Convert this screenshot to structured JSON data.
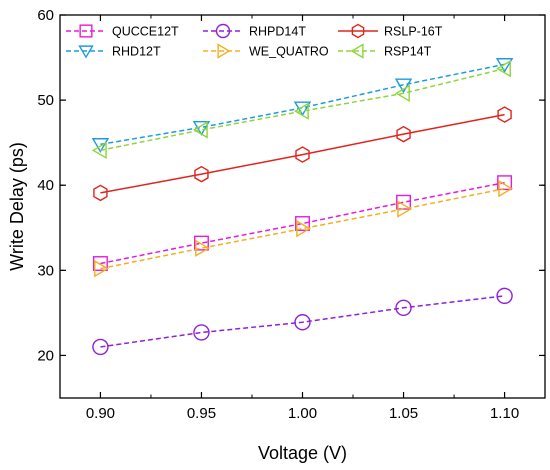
{
  "chart_data": {
    "type": "line",
    "title": "",
    "xlabel": "Voltage (V)",
    "ylabel": "Write Delay (ps)",
    "xlim": [
      0.88,
      1.12
    ],
    "ylim": [
      15,
      60
    ],
    "x": [
      0.9,
      0.95,
      1.0,
      1.05,
      1.1
    ],
    "x_tick_labels": [
      "0.90",
      "0.95",
      "1.00",
      "1.05",
      "1.10"
    ],
    "y_ticks": [
      20,
      30,
      40,
      50,
      60
    ],
    "y_tick_labels": [
      "20",
      "30",
      "40",
      "50",
      "60"
    ],
    "grid": false,
    "legend_position": "top-left",
    "series": [
      {
        "name": "QUCCE12T",
        "values": [
          30.8,
          33.2,
          35.5,
          38.0,
          40.3
        ],
        "color": "#e81ad9",
        "marker": "square",
        "dash": true
      },
      {
        "name": "RHPD14T",
        "values": [
          21.0,
          22.7,
          23.9,
          25.6,
          27.0
        ],
        "color": "#8e22d9",
        "marker": "circle",
        "dash": true
      },
      {
        "name": "RSLP-16T",
        "values": [
          39.1,
          41.3,
          43.6,
          46.0,
          48.3
        ],
        "color": "#e0241c",
        "marker": "hexagon",
        "dash": false
      },
      {
        "name": "RHD12T",
        "values": [
          44.8,
          46.8,
          49.1,
          51.8,
          54.2
        ],
        "color": "#1e9be0",
        "marker": "triangle-down",
        "dash": true
      },
      {
        "name": "WE_QUATRO",
        "values": [
          30.2,
          32.6,
          34.9,
          37.2,
          39.6
        ],
        "color": "#f2b01e",
        "marker": "triangle-right",
        "dash": true
      },
      {
        "name": "RSP14T",
        "values": [
          44.1,
          46.5,
          48.7,
          50.8,
          53.7
        ],
        "color": "#8ed63a",
        "marker": "triangle-left",
        "dash": true
      }
    ]
  }
}
